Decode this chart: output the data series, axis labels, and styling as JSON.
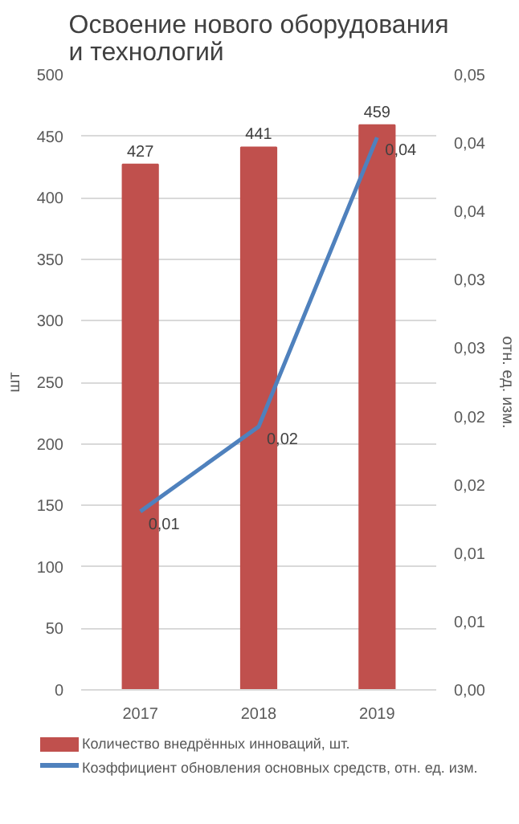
{
  "chart_data": {
    "type": "bar",
    "title": "Освоение нового оборудования и технологий",
    "categories": [
      "2017",
      "2018",
      "2019"
    ],
    "ylabel": "шт",
    "y2label": "отн. ед. изм.",
    "ylim": [
      0,
      500
    ],
    "yticks": [
      0,
      50,
      100,
      150,
      200,
      250,
      300,
      350,
      400,
      450,
      500
    ],
    "y2lim": [
      0,
      0.05
    ],
    "y2ticks": [
      {
        "value": 0,
        "label": "0,00"
      },
      {
        "value": 0.005556,
        "label": "0,01"
      },
      {
        "value": 0.011111,
        "label": "0,01"
      },
      {
        "value": 0.016667,
        "label": "0,02"
      },
      {
        "value": 0.022222,
        "label": "0,02"
      },
      {
        "value": 0.027778,
        "label": "0,03"
      },
      {
        "value": 0.033333,
        "label": "0,03"
      },
      {
        "value": 0.038889,
        "label": "0,04"
      },
      {
        "value": 0.044444,
        "label": "0,04"
      },
      {
        "value": 0.05,
        "label": "0,05"
      }
    ],
    "grid": "y",
    "legend": "bottom",
    "series": [
      {
        "name": "Количество внедрённых инноваций, шт.",
        "color": "#c0504d",
        "values": [
          427,
          441,
          459
        ],
        "value_labels": [
          "427",
          "441",
          "459"
        ]
      },
      {
        "type": "line",
        "axis": "y2",
        "name": "Коэффициент обновления основных средств, отн. ед. изм.",
        "color": "#4f81bd",
        "values": [
          0.0145,
          0.0214,
          0.0449
        ],
        "value_labels": [
          "0,01",
          "0,02",
          "0,04"
        ]
      }
    ]
  }
}
